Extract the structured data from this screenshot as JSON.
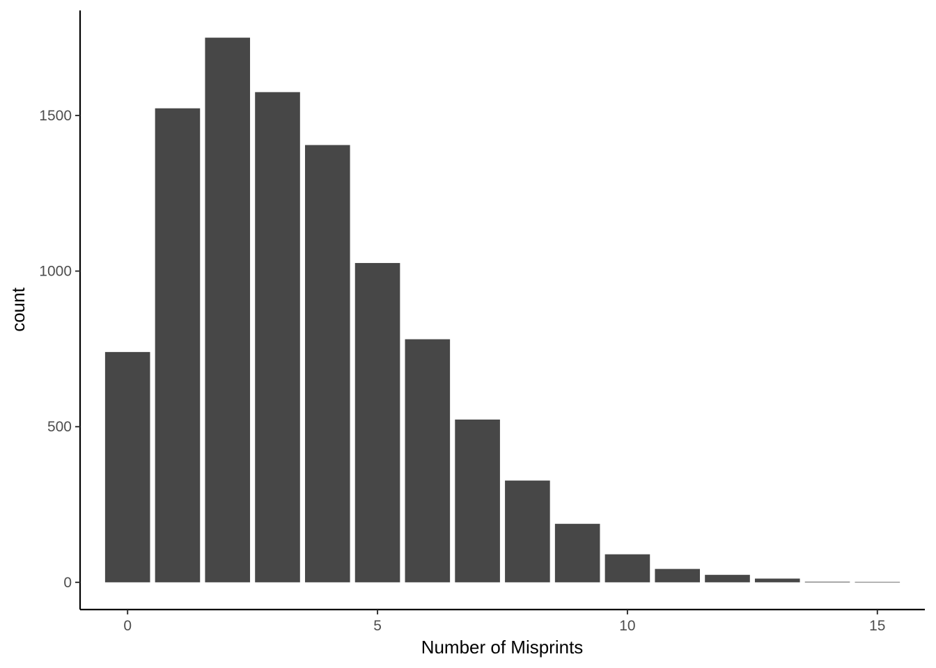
{
  "chart_data": {
    "type": "bar",
    "title": "",
    "xlabel": "Number of Misprints",
    "ylabel": "count",
    "x": [
      0,
      1,
      2,
      3,
      4,
      5,
      6,
      7,
      8,
      9,
      10,
      11,
      12,
      13,
      14,
      15
    ],
    "values": [
      740,
      1523,
      1750,
      1575,
      1405,
      1026,
      781,
      523,
      327,
      188,
      90,
      43,
      24,
      12,
      2,
      1
    ],
    "xticks": [
      0,
      5,
      10,
      15
    ],
    "xtick_labels": [
      "0",
      "5",
      "10",
      "15"
    ],
    "yticks": [
      0,
      500,
      1000,
      1500
    ],
    "ytick_labels": [
      "0",
      "500",
      "1000",
      "1500"
    ],
    "xlim": [
      -0.95,
      15.95
    ],
    "ylim": [
      -87.5,
      1837.5
    ],
    "grid": false,
    "legend": "none",
    "bar_color": "#474747",
    "axis_color": "#000000"
  }
}
